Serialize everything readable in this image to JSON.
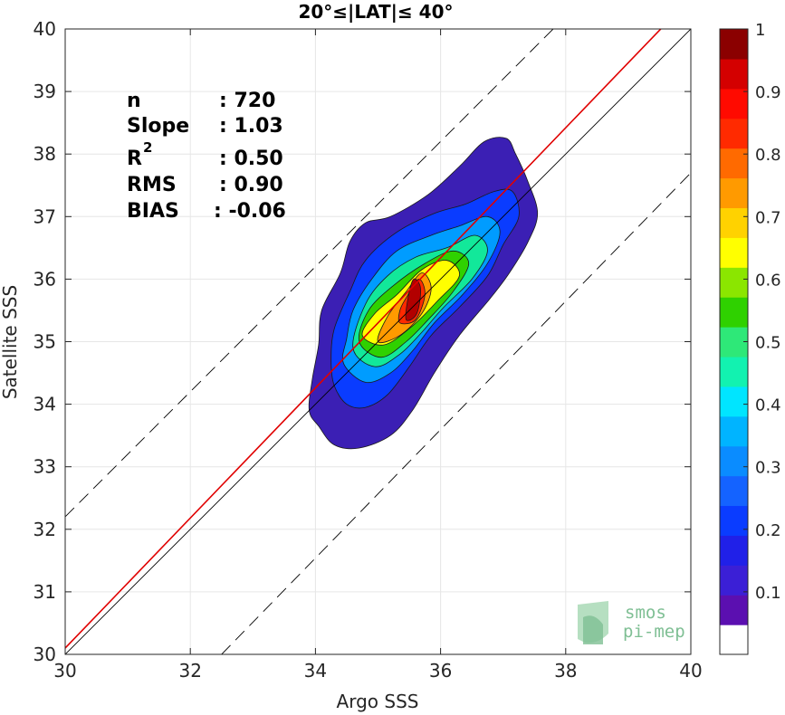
{
  "chart_data": {
    "type": "heatmap",
    "title": "20°≤|LAT|≤ 40°",
    "xlabel": "Argo SSS",
    "ylabel": "Satellite SSS",
    "xlim": [
      30,
      40
    ],
    "ylim": [
      30,
      40
    ],
    "xticks": [
      "30",
      "32",
      "34",
      "36",
      "38",
      "40"
    ],
    "yticks": [
      "30",
      "31",
      "32",
      "33",
      "34",
      "35",
      "36",
      "37",
      "38",
      "39",
      "40"
    ],
    "grid": true,
    "density_contours": [
      {
        "level": 0.05,
        "color": "#3b1fb4",
        "points": [
          [
            33.9,
            33.9
          ],
          [
            34.05,
            33.65
          ],
          [
            34.3,
            33.35
          ],
          [
            34.7,
            33.3
          ],
          [
            35.2,
            33.5
          ],
          [
            35.55,
            33.9
          ],
          [
            35.9,
            34.5
          ],
          [
            36.3,
            35.1
          ],
          [
            36.8,
            35.7
          ],
          [
            37.1,
            36.1
          ],
          [
            37.4,
            36.6
          ],
          [
            37.55,
            37.05
          ],
          [
            37.4,
            37.55
          ],
          [
            37.2,
            38.0
          ],
          [
            37.05,
            38.25
          ],
          [
            36.7,
            38.2
          ],
          [
            36.3,
            37.8
          ],
          [
            35.8,
            37.35
          ],
          [
            35.2,
            37.0
          ],
          [
            34.8,
            36.9
          ],
          [
            34.55,
            36.6
          ],
          [
            34.4,
            36.1
          ],
          [
            34.1,
            35.5
          ],
          [
            34.05,
            34.95
          ],
          [
            33.95,
            34.4
          ]
        ]
      },
      {
        "level": 0.15,
        "color": "#0a3cff",
        "points": [
          [
            34.3,
            34.3
          ],
          [
            34.5,
            34.0
          ],
          [
            34.8,
            33.95
          ],
          [
            35.15,
            34.15
          ],
          [
            35.5,
            34.6
          ],
          [
            35.85,
            35.1
          ],
          [
            36.3,
            35.55
          ],
          [
            36.75,
            36.05
          ],
          [
            37.0,
            36.55
          ],
          [
            37.25,
            37.0
          ],
          [
            37.15,
            37.4
          ],
          [
            36.85,
            37.4
          ],
          [
            36.4,
            37.2
          ],
          [
            35.9,
            37.05
          ],
          [
            35.3,
            36.75
          ],
          [
            34.8,
            36.3
          ],
          [
            34.55,
            35.8
          ],
          [
            34.3,
            35.2
          ],
          [
            34.25,
            34.7
          ]
        ]
      },
      {
        "level": 0.25,
        "color": "#009cff",
        "points": [
          [
            34.45,
            34.65
          ],
          [
            34.8,
            34.35
          ],
          [
            35.2,
            34.5
          ],
          [
            35.55,
            34.85
          ],
          [
            35.9,
            35.3
          ],
          [
            36.35,
            35.75
          ],
          [
            36.75,
            36.25
          ],
          [
            36.95,
            36.75
          ],
          [
            36.75,
            37.0
          ],
          [
            36.3,
            36.85
          ],
          [
            35.85,
            36.7
          ],
          [
            35.3,
            36.45
          ],
          [
            34.9,
            36.0
          ],
          [
            34.6,
            35.5
          ],
          [
            34.5,
            35.05
          ]
        ]
      },
      {
        "level": 0.4,
        "color": "#12e89a",
        "points": [
          [
            34.6,
            34.9
          ],
          [
            34.95,
            34.6
          ],
          [
            35.35,
            34.8
          ],
          [
            35.7,
            35.15
          ],
          [
            36.05,
            35.55
          ],
          [
            36.5,
            36.0
          ],
          [
            36.75,
            36.45
          ],
          [
            36.55,
            36.7
          ],
          [
            36.1,
            36.5
          ],
          [
            35.6,
            36.35
          ],
          [
            35.15,
            36.05
          ],
          [
            34.8,
            35.6
          ]
        ]
      },
      {
        "level": 0.55,
        "color": "#2fd100",
        "points": [
          [
            34.7,
            35.0
          ],
          [
            35.05,
            34.75
          ],
          [
            35.45,
            35.0
          ],
          [
            35.8,
            35.35
          ],
          [
            36.2,
            35.8
          ],
          [
            36.45,
            36.25
          ],
          [
            36.2,
            36.45
          ],
          [
            35.75,
            36.25
          ],
          [
            35.25,
            35.9
          ],
          [
            34.85,
            35.5
          ]
        ]
      },
      {
        "level": 0.65,
        "color": "#ffff00",
        "points": [
          [
            34.75,
            35.1
          ],
          [
            35.1,
            34.95
          ],
          [
            35.55,
            35.25
          ],
          [
            35.95,
            35.65
          ],
          [
            36.3,
            36.05
          ],
          [
            36.1,
            36.3
          ],
          [
            35.7,
            36.15
          ],
          [
            35.3,
            35.75
          ],
          [
            34.95,
            35.45
          ]
        ]
      },
      {
        "level": 0.75,
        "color": "#ff9a00",
        "points": [
          [
            35.0,
            35.0
          ],
          [
            35.35,
            35.1
          ],
          [
            35.7,
            35.45
          ],
          [
            35.85,
            35.85
          ],
          [
            35.7,
            36.1
          ],
          [
            35.45,
            35.8
          ],
          [
            35.15,
            35.4
          ]
        ]
      },
      {
        "level": 0.85,
        "color": "#ff2a00",
        "points": [
          [
            35.35,
            35.3
          ],
          [
            35.6,
            35.35
          ],
          [
            35.75,
            35.75
          ],
          [
            35.65,
            36.0
          ],
          [
            35.45,
            35.7
          ],
          [
            35.35,
            35.5
          ]
        ]
      },
      {
        "level": 0.95,
        "color": "#b20000",
        "points": [
          [
            35.45,
            35.35
          ],
          [
            35.62,
            35.45
          ],
          [
            35.68,
            35.85
          ],
          [
            35.57,
            36.0
          ],
          [
            35.48,
            35.7
          ]
        ]
      }
    ],
    "reference_lines": [
      {
        "name": "1:1",
        "color": "#000000",
        "style": "solid",
        "points": [
          [
            30,
            30
          ],
          [
            40,
            40
          ]
        ]
      },
      {
        "name": "fit",
        "color": "#e00000",
        "style": "solid",
        "points": [
          [
            30,
            30.1
          ],
          [
            40,
            40.5
          ]
        ]
      },
      {
        "name": "upper",
        "color": "#000000",
        "style": "dashed",
        "points": [
          [
            30,
            32.2
          ],
          [
            37.8,
            40
          ]
        ]
      },
      {
        "name": "lower",
        "color": "#000000",
        "style": "dashed",
        "points": [
          [
            32.5,
            30
          ],
          [
            40,
            37.7
          ]
        ]
      }
    ],
    "stats": [
      {
        "label": "n",
        "value": ": 720"
      },
      {
        "label": "Slope",
        "value": ": 1.03"
      },
      {
        "label": "R",
        "sup": "2",
        "value": ": 0.50"
      },
      {
        "label": "RMS",
        "value": ": 0.90"
      },
      {
        "label": "BIAS",
        "value": ": -0.06"
      }
    ],
    "colorbar": {
      "range": [
        0,
        1
      ],
      "ticks": [
        "0.1",
        "0.2",
        "0.3",
        "0.4",
        "0.5",
        "0.6",
        "0.7",
        "0.8",
        "0.9",
        "1"
      ],
      "colors": [
        "#ffffff",
        "#5b0fb0",
        "#3b1fd6",
        "#2020e8",
        "#0a3cff",
        "#1463ff",
        "#0a8cff",
        "#00b4ff",
        "#00e5ff",
        "#12f2b0",
        "#2ee878",
        "#2fd100",
        "#8be600",
        "#ffff00",
        "#ffd200",
        "#ff9a00",
        "#ff6a00",
        "#ff2a00",
        "#ff0a00",
        "#d40000",
        "#8b0000"
      ]
    }
  },
  "logo": {
    "line1": "smos",
    "line2": "pi-mep"
  }
}
